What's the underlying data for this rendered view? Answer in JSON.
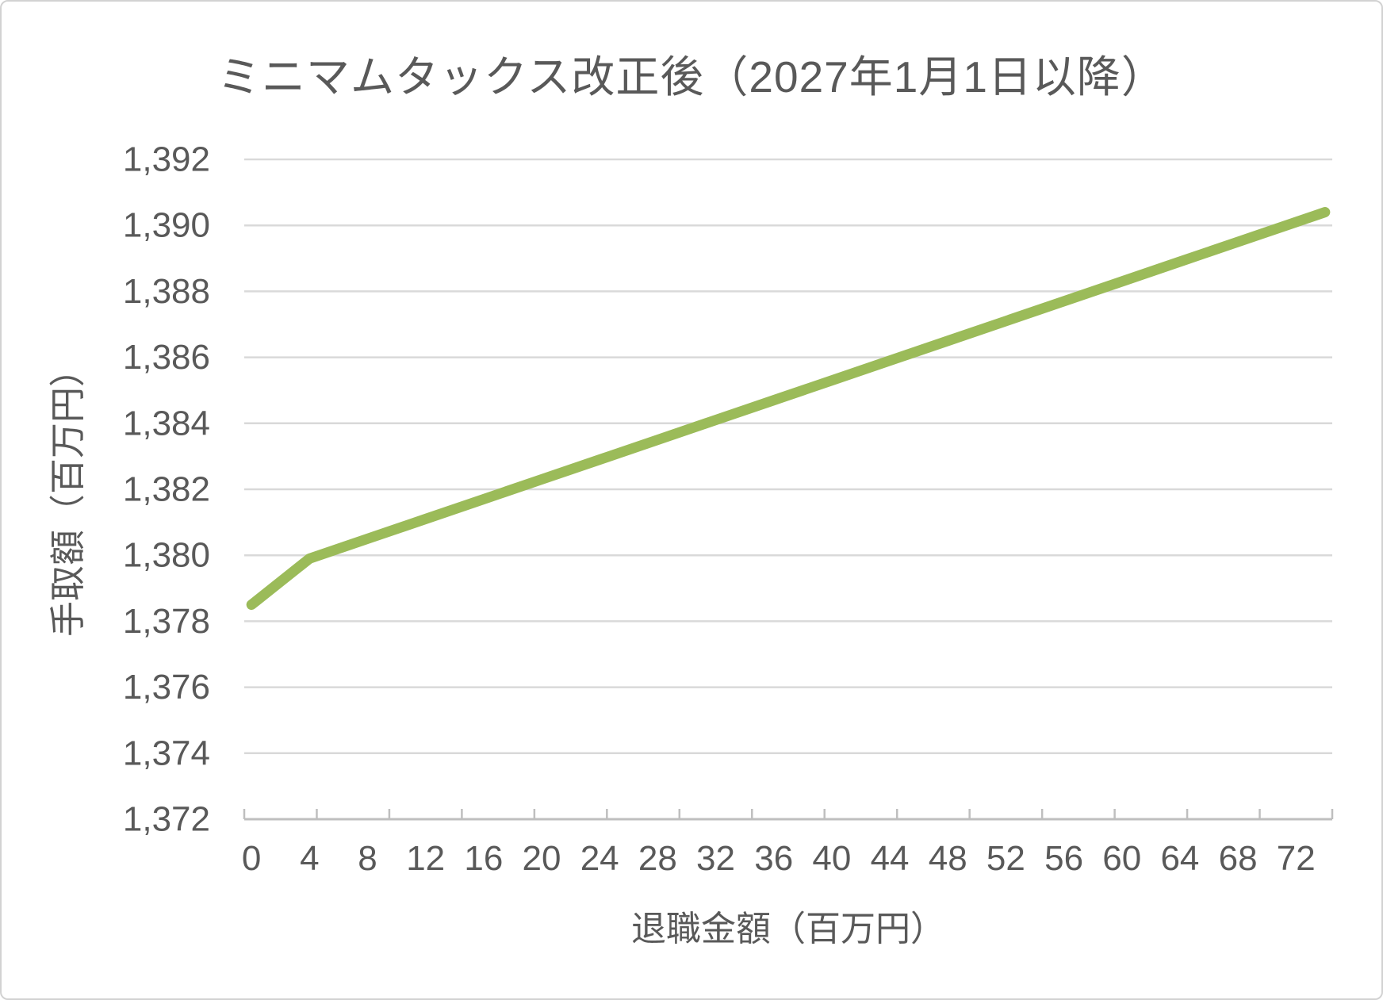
{
  "chart_data": {
    "type": "line",
    "title": "ミニマムタックス改正後（2027年1月1日以降）",
    "xlabel": "退職金額（百万円）",
    "ylabel": "手取額（百万円）",
    "x": [
      0,
      4,
      8,
      12,
      16,
      20,
      24,
      28,
      32,
      36,
      40,
      44,
      48,
      52,
      56,
      60,
      64,
      68,
      72,
      74
    ],
    "series": [
      {
        "name": "手取額",
        "values": [
          1378.5,
          1379.9,
          1380.5,
          1381.1,
          1381.7,
          1382.3,
          1382.9,
          1383.5,
          1384.1,
          1384.7,
          1385.3,
          1385.9,
          1386.5,
          1387.1,
          1387.7,
          1388.3,
          1388.9,
          1389.5,
          1390.1,
          1390.4
        ]
      }
    ],
    "xlim": [
      -0.5,
      74.5
    ],
    "ylim": [
      1372,
      1392
    ],
    "x_tick_values": [
      0,
      4,
      8,
      12,
      16,
      20,
      24,
      28,
      32,
      36,
      40,
      44,
      48,
      52,
      56,
      60,
      64,
      68,
      72
    ],
    "x_tick_labels": [
      "0",
      "4",
      "8",
      "12",
      "16",
      "20",
      "24",
      "28",
      "32",
      "36",
      "40",
      "44",
      "48",
      "52",
      "56",
      "60",
      "64",
      "68",
      "72"
    ],
    "y_tick_values": [
      1392,
      1390,
      1388,
      1386,
      1384,
      1382,
      1380,
      1378,
      1376,
      1374,
      1372
    ],
    "y_tick_labels": [
      "1,392",
      "1,390",
      "1,388",
      "1,386",
      "1,384",
      "1,382",
      "1,380",
      "1,378",
      "1,376",
      "1,374",
      "1,372"
    ],
    "x_tick_mark_count": 15,
    "grid": "horizontal",
    "legend": "none"
  },
  "colors": {
    "line": "#9BBB59",
    "grid": "#D9D9D9",
    "axis": "#BFBFBF",
    "text": "#595959"
  }
}
